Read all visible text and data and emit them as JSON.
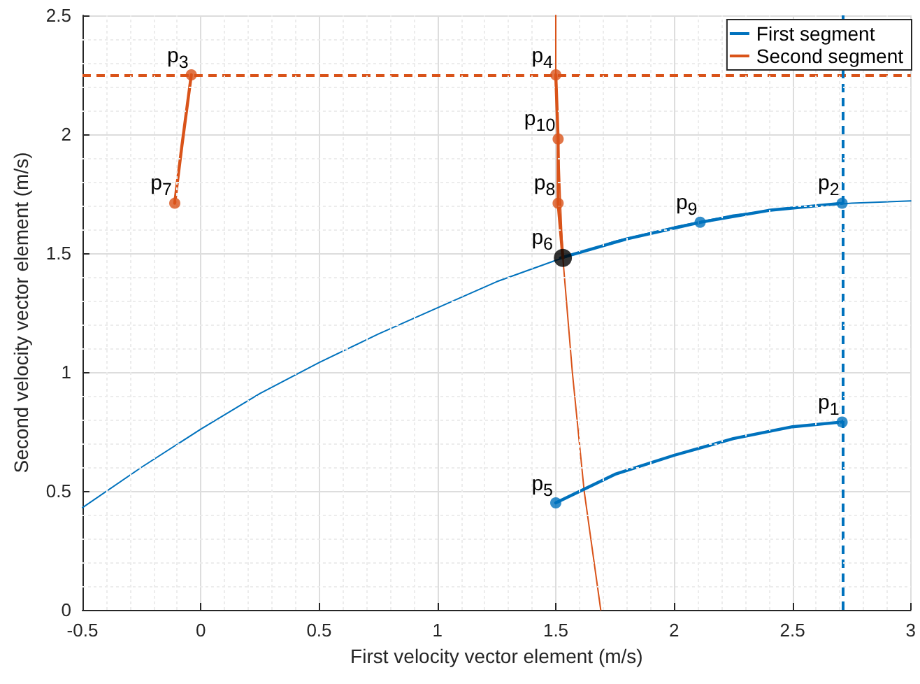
{
  "chart_data": {
    "type": "line",
    "xlabel": "First velocity vector element (m/s)",
    "ylabel": "Second velocity vector element (m/s)",
    "xlim": [
      -0.5,
      3
    ],
    "xticks": [
      -0.5,
      0,
      0.5,
      1,
      1.5,
      2,
      2.5,
      3
    ],
    "ylim": [
      0,
      2.5
    ],
    "yticks": [
      0,
      0.5,
      1,
      1.5,
      2,
      2.5
    ],
    "grid": true,
    "legend": "top right",
    "marker": "none",
    "line_style": "solid",
    "series": [
      {
        "color": "#0072bd",
        "x": [
          -0.5,
          -0.25,
          0,
          0.25,
          0.5,
          0.75,
          1,
          1.25,
          1.5,
          1.75,
          2,
          2.25,
          2.5,
          2.75,
          3
        ],
        "values": [
          0.43,
          0.6,
          0.76,
          0.91,
          1.04,
          1.16,
          1.27,
          1.38,
          1.47,
          1.55,
          1.61,
          1.66,
          1.69,
          1.71,
          1.72
        ]
      },
      {
        "color": "#d95319",
        "x": [
          1.5,
          1.5,
          1.51,
          1.52,
          1.53,
          1.57,
          1.62,
          1.69
        ],
        "values": [
          2.5,
          2.25,
          2.0,
          1.71,
          1.48,
          1.0,
          0.5,
          0
        ]
      },
      {
        "name": "First segment",
        "color": "#0072bd",
        "x": [
          1.5,
          1.75,
          2,
          2.25,
          2.5,
          2.71,
          null,
          1.52,
          1.8,
          2.11,
          2.4,
          2.71
        ],
        "values": [
          0.45,
          0.57,
          0.65,
          0.72,
          0.77,
          0.79,
          null,
          1.48,
          1.56,
          1.63,
          1.68,
          1.71
        ]
      },
      {
        "name": "Second segment",
        "color": "#d95319",
        "x": [
          -0.11,
          -0.08,
          -0.04,
          null,
          1.5,
          1.51,
          1.51,
          1.53
        ],
        "values": [
          1.71,
          1.95,
          2.25,
          null,
          2.25,
          1.98,
          1.71,
          1.48
        ]
      },
      {
        "type": "scatter",
        "marker": "circle",
        "color": "#0072bd",
        "x": [
          2.71,
          2.71,
          1.5,
          2.11
        ],
        "values": [
          0.79,
          1.71,
          0.45,
          1.63
        ]
      },
      {
        "type": "scatter",
        "marker": "circle",
        "color": "#d95319",
        "x": [
          -0.04,
          1.5,
          -0.11,
          1.51,
          1.51
        ],
        "values": [
          2.25,
          2.25,
          1.71,
          1.71,
          1.98
        ]
      },
      {
        "type": "scatter",
        "marker": "circle",
        "color": "#000000",
        "x": [
          1.53
        ],
        "values": [
          1.48
        ]
      }
    ],
    "ref_lines": [
      {
        "axis": "y",
        "value": 2.25,
        "color": "#d95319",
        "line_style": "dashed"
      },
      {
        "axis": "x",
        "value": 2.71,
        "color": "#0072bd",
        "line_style": "dashed"
      }
    ],
    "annotations": [
      {
        "text": "p$_{1}$",
        "x": 2.71,
        "y": 0.79
      },
      {
        "text": "p$_{2}$",
        "x": 2.71,
        "y": 1.71
      },
      {
        "text": "p$_{3}$",
        "x": -0.04,
        "y": 2.25
      },
      {
        "text": "p$_{4}$",
        "x": 1.5,
        "y": 2.25
      },
      {
        "text": "p$_{5}$",
        "x": 1.5,
        "y": 0.45
      },
      {
        "text": "p$_{6}$",
        "x": 1.5,
        "y": 1.48
      },
      {
        "text": "p$_{7}$",
        "x": -0.11,
        "y": 1.71
      },
      {
        "text": "p$_{8}$",
        "x": 1.51,
        "y": 1.71
      },
      {
        "text": "p$_{9}$",
        "x": 2.11,
        "y": 1.63
      },
      {
        "text": "p$_{10}$",
        "x": 1.51,
        "y": 1.98
      }
    ]
  }
}
